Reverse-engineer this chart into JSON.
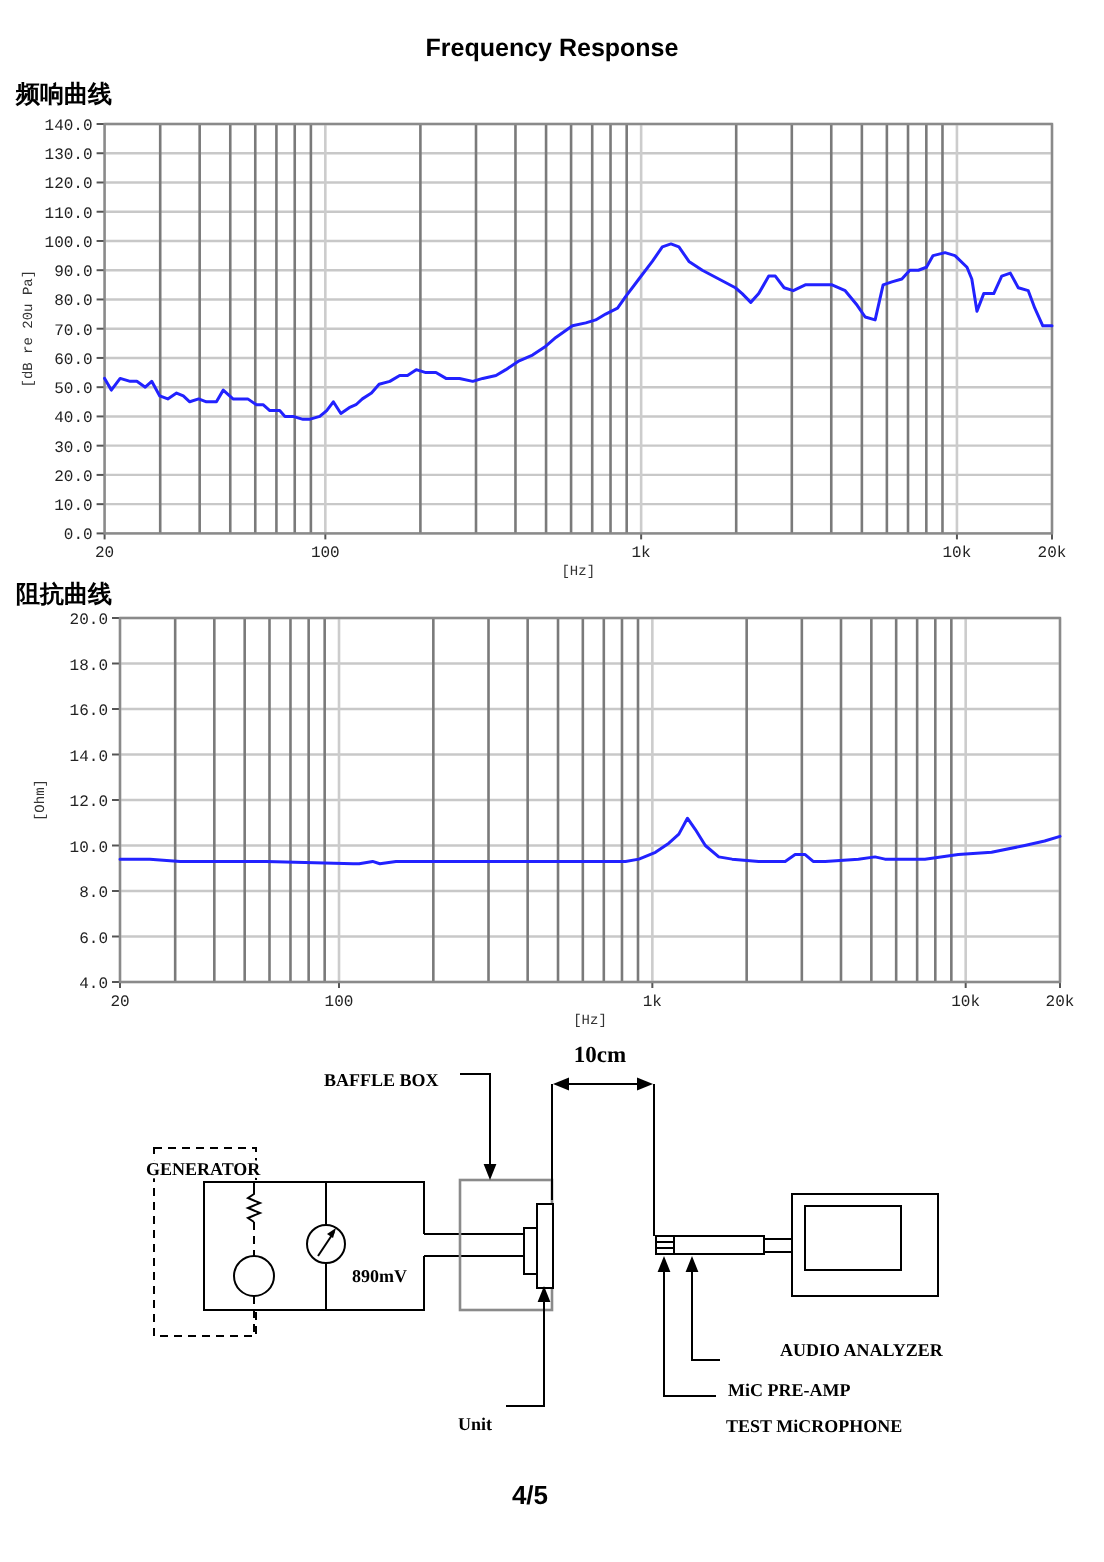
{
  "chart_data": [
    {
      "type": "line",
      "title": "Frequency Response",
      "subtitle": "频响曲线",
      "xlabel": "[Hz]",
      "ylabel": "[dB re 20u Pa]",
      "log": "x",
      "grid": true,
      "color": "#2222ff",
      "xlim": [
        20,
        20000
      ],
      "xticks": [
        {
          "value": 20,
          "label": "20"
        },
        {
          "value": 30,
          "label": null
        },
        {
          "value": 40,
          "label": null
        },
        {
          "value": 50,
          "label": null
        },
        {
          "value": 60,
          "label": null
        },
        {
          "value": 70,
          "label": null
        },
        {
          "value": 80,
          "label": null
        },
        {
          "value": 90,
          "label": null
        },
        {
          "value": 100,
          "label": "100"
        },
        {
          "value": 200,
          "label": null
        },
        {
          "value": 300,
          "label": null
        },
        {
          "value": 400,
          "label": null
        },
        {
          "value": 500,
          "label": null
        },
        {
          "value": 600,
          "label": null
        },
        {
          "value": 700,
          "label": null
        },
        {
          "value": 800,
          "label": null
        },
        {
          "value": 900,
          "label": null
        },
        {
          "value": 1000,
          "label": "1k"
        },
        {
          "value": 2000,
          "label": null
        },
        {
          "value": 3000,
          "label": null
        },
        {
          "value": 4000,
          "label": null
        },
        {
          "value": 5000,
          "label": null
        },
        {
          "value": 6000,
          "label": null
        },
        {
          "value": 7000,
          "label": null
        },
        {
          "value": 8000,
          "label": null
        },
        {
          "value": 9000,
          "label": null
        },
        {
          "value": 10000,
          "label": "10k"
        },
        {
          "value": 20000,
          "label": "20k"
        }
      ],
      "ylim": [
        0,
        140
      ],
      "yticks": [
        {
          "value": 0,
          "label": "0.0"
        },
        {
          "value": 10,
          "label": "10.0"
        },
        {
          "value": 20,
          "label": "20.0"
        },
        {
          "value": 30,
          "label": "30.0"
        },
        {
          "value": 40,
          "label": "40.0"
        },
        {
          "value": 50,
          "label": "50.0"
        },
        {
          "value": 60,
          "label": "60.0"
        },
        {
          "value": 70,
          "label": "70.0"
        },
        {
          "value": 80,
          "label": "80.0"
        },
        {
          "value": 90,
          "label": "90.0"
        },
        {
          "value": 100,
          "label": "100.0"
        },
        {
          "value": 110,
          "label": "110.0"
        },
        {
          "value": 120,
          "label": "120.0"
        },
        {
          "value": 130,
          "label": "130.0"
        },
        {
          "value": 140,
          "label": "140.0"
        }
      ],
      "x": [
        20,
        21,
        22.4,
        24.1,
        25.3,
        26.9,
        28.2,
        29.9,
        31.7,
        33.8,
        35.5,
        37.2,
        39.7,
        42,
        45.2,
        47.5,
        51,
        53.6,
        56.8,
        60.5,
        63.5,
        66.7,
        71.7,
        74.5,
        79,
        85,
        89,
        96,
        101,
        106,
        112,
        119,
        125,
        131,
        140,
        148,
        160,
        172,
        182,
        194,
        208,
        224,
        241,
        266,
        293,
        315,
        347,
        373,
        411,
        453,
        499,
        537,
        606,
        668,
        718,
        772,
        842,
        893,
        984,
        1085,
        1167,
        1243,
        1317,
        1417,
        1562,
        1762,
        1988,
        2089,
        2224,
        2357,
        2536,
        2660,
        2836,
        3032,
        3310,
        3648,
        4022,
        4428,
        4832,
        5122,
        5508,
        5838,
        6224,
        6693,
        7093,
        7552,
        8006,
        8402,
        9170,
        9858,
        10760,
        11144,
        11572,
        12158,
        13078,
        13862,
        14758,
        15642,
        16820,
        17644,
        18702,
        20000
      ],
      "values": [
        53,
        49,
        53,
        52,
        52,
        50,
        52,
        47,
        46,
        48,
        47,
        45,
        46,
        45,
        45,
        49,
        46,
        46,
        46,
        44,
        44,
        42,
        42,
        40,
        40,
        39,
        39,
        40,
        42,
        45,
        41,
        43,
        44,
        46,
        48,
        51,
        52,
        54,
        54,
        56,
        55,
        55,
        53,
        53,
        52,
        53,
        54,
        56,
        59,
        61,
        64,
        67,
        71,
        72,
        73,
        75,
        77,
        81,
        87,
        93,
        98,
        99,
        98,
        93,
        90,
        87,
        84,
        82,
        79,
        82,
        88,
        88,
        84,
        83,
        85,
        85,
        85,
        83,
        78,
        74,
        73,
        85,
        86,
        87,
        90,
        90,
        91,
        95,
        96,
        95,
        91,
        87,
        76,
        82,
        82,
        88,
        89,
        84,
        83,
        77,
        71,
        71
      ]
    },
    {
      "type": "line",
      "title": "阻抗曲线",
      "xlabel": "[Hz]",
      "ylabel": "[Ohm]",
      "log": "x",
      "grid": true,
      "color": "#2222ff",
      "xlim": [
        20,
        20000
      ],
      "xticks": [
        {
          "value": 20,
          "label": "20"
        },
        {
          "value": 30,
          "label": null
        },
        {
          "value": 40,
          "label": null
        },
        {
          "value": 50,
          "label": null
        },
        {
          "value": 60,
          "label": null
        },
        {
          "value": 70,
          "label": null
        },
        {
          "value": 80,
          "label": null
        },
        {
          "value": 90,
          "label": null
        },
        {
          "value": 100,
          "label": "100"
        },
        {
          "value": 200,
          "label": null
        },
        {
          "value": 300,
          "label": null
        },
        {
          "value": 400,
          "label": null
        },
        {
          "value": 500,
          "label": null
        },
        {
          "value": 600,
          "label": null
        },
        {
          "value": 700,
          "label": null
        },
        {
          "value": 800,
          "label": null
        },
        {
          "value": 900,
          "label": null
        },
        {
          "value": 1000,
          "label": "1k"
        },
        {
          "value": 2000,
          "label": null
        },
        {
          "value": 3000,
          "label": null
        },
        {
          "value": 4000,
          "label": null
        },
        {
          "value": 5000,
          "label": null
        },
        {
          "value": 6000,
          "label": null
        },
        {
          "value": 7000,
          "label": null
        },
        {
          "value": 8000,
          "label": null
        },
        {
          "value": 9000,
          "label": null
        },
        {
          "value": 10000,
          "label": "10k"
        },
        {
          "value": 20000,
          "label": "20k"
        }
      ],
      "ylim": [
        4,
        20
      ],
      "yticks": [
        {
          "value": 4,
          "label": "4.0"
        },
        {
          "value": 6,
          "label": "6.0"
        },
        {
          "value": 8,
          "label": "8.0"
        },
        {
          "value": 10,
          "label": "10.0"
        },
        {
          "value": 12,
          "label": "12.0"
        },
        {
          "value": 14,
          "label": "14.0"
        },
        {
          "value": 16,
          "label": "16.0"
        },
        {
          "value": 18,
          "label": "18.0"
        },
        {
          "value": 20,
          "label": "20.0"
        }
      ],
      "x": [
        20,
        24.9,
        31.1,
        39.7,
        58.6,
        111,
        116,
        128,
        135,
        152,
        435,
        821,
        906,
        1023,
        1129,
        1215,
        1294,
        1372,
        1476,
        1629,
        1797,
        2184,
        2654,
        2856,
        3074,
        3260,
        3560,
        4546,
        5136,
        5526,
        7412,
        9468,
        12096,
        15432,
        17864,
        20000
      ],
      "values": [
        9.4,
        9.4,
        9.3,
        9.3,
        9.3,
        9.2,
        9.2,
        9.3,
        9.2,
        9.3,
        9.3,
        9.3,
        9.4,
        9.7,
        10.1,
        10.5,
        11.2,
        10.7,
        10.0,
        9.5,
        9.4,
        9.3,
        9.3,
        9.6,
        9.6,
        9.3,
        9.3,
        9.4,
        9.5,
        9.4,
        9.4,
        9.6,
        9.7,
        10.0,
        10.2,
        10.4
      ]
    },
    {
      "type": "other",
      "annotations": [
        "10cm",
        "BAFFLE BOX",
        "GENERATOR",
        "890mV",
        "Unit",
        "AUDIO ANALYZER",
        "MiC PRE-AMP",
        "TEST MiCROPHONE",
        "4/5"
      ]
    }
  ]
}
